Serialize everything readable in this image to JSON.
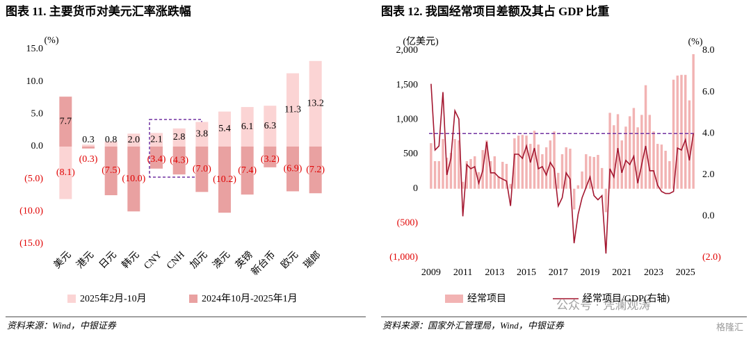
{
  "chart_data": [
    {
      "type": "bar",
      "title": "图表 11. 主要货币对美元汇率涨跌幅",
      "unit": "(%)",
      "categories": [
        "美元",
        "港元",
        "日元",
        "韩元",
        "CNY",
        "CNH",
        "加元",
        "澳元",
        "英镑",
        "新台币",
        "欧元",
        "瑞郎"
      ],
      "series": [
        {
          "name": "2025年2月-10月",
          "color": "#fbd4d4",
          "values": [
            -8.1,
            0.3,
            0.8,
            2.0,
            2.1,
            2.8,
            3.8,
            5.4,
            6.1,
            6.3,
            11.3,
            13.2
          ],
          "value_labels": [
            "(8.1)",
            "0.3",
            "0.8",
            "2.0",
            "2.1",
            "2.8",
            "3.8",
            "5.4",
            "6.1",
            "6.3",
            "11.3",
            "13.2"
          ]
        },
        {
          "name": "2024年10月-2025年1月",
          "color": "#e9a1a1",
          "values": [
            7.7,
            -0.3,
            -7.5,
            -10.0,
            -3.4,
            -4.3,
            -7.0,
            -10.2,
            -7.4,
            -3.2,
            -6.9,
            -7.2
          ],
          "value_labels": [
            "7.7",
            "(0.3)",
            "(7.5)",
            "(10.0)",
            "(3.4)",
            "(4.3)",
            "(7.0)",
            "(10.2)",
            "(7.4)",
            "(3.2)",
            "(6.9)",
            "(7.2)"
          ]
        }
      ],
      "ylim": [
        -15,
        15
      ],
      "yticks": [
        {
          "value": 15,
          "label": "15.0"
        },
        {
          "value": 10,
          "label": "10.0"
        },
        {
          "value": 5,
          "label": "5.0"
        },
        {
          "value": 0,
          "label": "0.0"
        },
        {
          "value": -5,
          "label": "(5.0)"
        },
        {
          "value": -10,
          "label": "(10.0)"
        },
        {
          "value": -15,
          "label": "(15.0)"
        }
      ],
      "negative_color": "#e00000"
    },
    {
      "type": "combo",
      "title": "图表 12. 我国经常项目差额及其占 GDP 比重",
      "y_unit": "(亿美元)",
      "y2_unit": "(%)",
      "categories": [
        "2009",
        null,
        null,
        null,
        null,
        null,
        null,
        null,
        "2011",
        null,
        null,
        null,
        null,
        null,
        null,
        null,
        "2013",
        null,
        null,
        null,
        null,
        null,
        null,
        null,
        "2015",
        null,
        null,
        null,
        null,
        null,
        null,
        null,
        "2017",
        null,
        null,
        null,
        null,
        null,
        null,
        null,
        "2019",
        null,
        null,
        null,
        null,
        null,
        null,
        null,
        "2021",
        null,
        null,
        null,
        null,
        null,
        null,
        null,
        "2023",
        null,
        null,
        null,
        null,
        null,
        null,
        null,
        "2025",
        null,
        null
      ],
      "series": [
        {
          "name": "经常项目",
          "type": "bar",
          "color": "#f2b3b3",
          "values": [
            660,
            400,
            400,
            720,
            450,
            520,
            720,
            700,
            100,
            400,
            430,
            470,
            240,
            560,
            700,
            400,
            470,
            180,
            390,
            360,
            70,
            730,
            770,
            780,
            770,
            650,
            840,
            640,
            500,
            600,
            700,
            830,
            230,
            500,
            600,
            580,
            -300,
            50,
            250,
            500,
            470,
            460,
            490,
            300,
            -340,
            1100,
            920,
            1080,
            700,
            900,
            1050,
            1170,
            890,
            1070,
            1500,
            1070,
            830,
            650,
            640,
            550,
            400,
            1580,
            1640,
            1650,
            1650,
            1280,
            1950
          ]
        },
        {
          "name": "经常项目/GDP(右轴)",
          "type": "line",
          "axis": "y2",
          "color": "#a3162f",
          "values": [
            6.4,
            3.2,
            3.4,
            6.0,
            2.0,
            2.8,
            5.1,
            4.7,
            0.0,
            2.5,
            2.3,
            2.4,
            1.6,
            2.2,
            3.6,
            2.1,
            2.1,
            1.9,
            1.8,
            1.7,
            0.5,
            3.0,
            3.0,
            2.8,
            3.4,
            2.6,
            3.3,
            2.3,
            2.4,
            2.0,
            2.6,
            2.3,
            0.5,
            0.9,
            2.1,
            1.8,
            -1.3,
            0.1,
            0.9,
            1.4,
            1.9,
            1.0,
            0.8,
            1.0,
            -1.8,
            2.3,
            1.9,
            3.3,
            2.1,
            2.7,
            2.5,
            2.9,
            1.6,
            2.5,
            3.4,
            2.2,
            2.2,
            1.5,
            1.2,
            1.1,
            1.1,
            1.2,
            3.3,
            3.2,
            3.7,
            2.7,
            4.0
          ]
        }
      ],
      "ylim": [
        -1000,
        2000
      ],
      "yticks": [
        {
          "value": 2000,
          "label": "2,000"
        },
        {
          "value": 1500,
          "label": "1,500"
        },
        {
          "value": 1000,
          "label": "1,000"
        },
        500,
        0,
        {
          "value": -500,
          "label": "(500)"
        },
        {
          "value": -1000,
          "label": "(1,000)"
        }
      ],
      "y2lim": [
        -2,
        8
      ],
      "y2ticks": [
        {
          "value": 8,
          "label": "8.0"
        },
        {
          "value": 6,
          "label": "6.0"
        },
        {
          "value": 4,
          "label": "4.0"
        },
        {
          "value": 2,
          "label": "2.0"
        },
        {
          "value": 0,
          "label": "0.0"
        },
        {
          "value": -2,
          "label": "(2.0)"
        }
      ],
      "reference_line": {
        "value": 4,
        "axis": "y2",
        "color": "#7030a0"
      },
      "negative_color": "#e00000"
    }
  ],
  "sources": [
    "资料来源：Wind，中银证券",
    "资料来源：国家外汇管理局，Wind，中银证券"
  ],
  "watermarks": [
    "公众号 · 凭澜观涛",
    "格隆汇"
  ]
}
